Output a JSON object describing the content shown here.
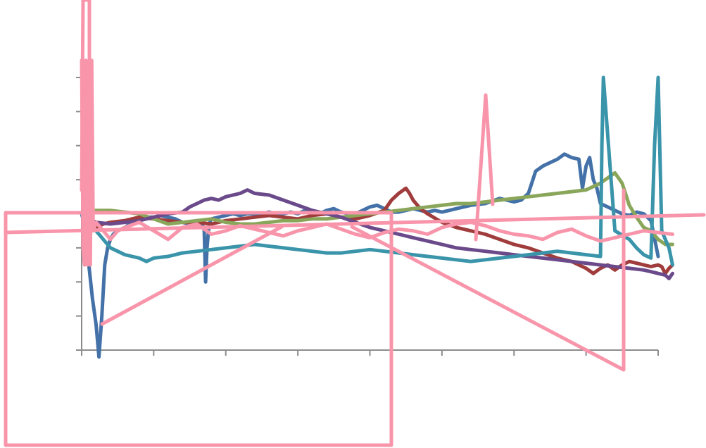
{
  "chart_data": {
    "type": "line",
    "title": "",
    "xlabel": "",
    "ylabel": "",
    "grid": false,
    "legend": "none",
    "x_ticks": 9,
    "y_ticks": 9,
    "xlim": [
      0,
      800
    ],
    "ylim": [
      -8,
      8
    ],
    "series": [
      {
        "color": "#4472a8",
        "x": [
          0,
          5,
          10,
          15,
          20,
          24,
          28,
          32,
          36,
          40,
          44,
          50,
          60,
          70,
          80,
          90,
          100,
          110,
          120,
          130,
          140,
          150,
          160,
          170,
          172,
          174,
          176,
          178,
          180,
          190,
          200,
          210,
          220,
          230,
          240,
          250,
          260,
          270,
          280,
          290,
          300,
          310,
          320,
          330,
          340,
          350,
          360,
          370,
          380,
          390,
          400,
          410,
          420,
          430,
          440,
          450,
          460,
          470,
          480,
          490,
          500,
          510,
          520,
          530,
          540,
          560,
          580,
          600,
          610,
          620,
          630,
          640,
          650,
          660,
          670,
          680,
          690,
          695,
          700,
          705,
          710,
          715,
          720,
          730,
          740,
          750,
          760,
          770,
          780,
          790,
          800
        ],
        "y": [
          0,
          -0.8,
          -3,
          -5,
          -6.5,
          -8.4,
          -6,
          -3,
          -2,
          -1.5,
          -1.2,
          -1,
          -0.8,
          -0.5,
          -0.3,
          -0.2,
          -0.2,
          -0.1,
          -0.2,
          -0.3,
          -0.5,
          -0.6,
          -0.4,
          -0.8,
          -4,
          -2,
          -1,
          -0.5,
          -0.3,
          -0.2,
          -0.1,
          0,
          -0.1,
          0,
          0,
          0,
          0.1,
          0,
          0,
          0.1,
          0,
          0.2,
          0.1,
          0,
          0.2,
          0.3,
          0.1,
          0,
          0,
          0.2,
          0.4,
          0.5,
          0.3,
          0.1,
          0.1,
          0.2,
          0.3,
          0.2,
          0.1,
          0.2,
          0.1,
          0.2,
          0.3,
          0.4,
          0.5,
          0.6,
          0.9,
          0.7,
          0.8,
          1.2,
          2.5,
          2.8,
          3.0,
          3.2,
          3.5,
          3.3,
          3.2,
          1.5,
          2.8,
          3.3,
          2.0,
          1.5,
          0.6,
          0.4,
          0.2,
          0,
          -0.1,
          0.1,
          0,
          -0.4,
          -2.5
        ]
      },
      {
        "color": "#a03c3c",
        "x": [
          0,
          10,
          20,
          30,
          40,
          60,
          80,
          100,
          120,
          140,
          160,
          180,
          200,
          220,
          240,
          260,
          280,
          300,
          320,
          340,
          360,
          380,
          400,
          420,
          430,
          440,
          450,
          455,
          460,
          470,
          480,
          500,
          520,
          540,
          560,
          580,
          600,
          620,
          640,
          660,
          680,
          700,
          710,
          720,
          730,
          740,
          750,
          760,
          770,
          780,
          790,
          800,
          805,
          810,
          815,
          820
        ],
        "y": [
          0,
          -0.5,
          -0.8,
          -0.6,
          -0.5,
          -0.4,
          -0.2,
          -0.3,
          -0.4,
          -0.5,
          -0.5,
          -0.6,
          -0.4,
          -0.3,
          -0.2,
          -0.1,
          -0.2,
          -0.3,
          -0.1,
          0,
          -0.2,
          -0.3,
          -0.1,
          0.2,
          0.8,
          1.2,
          1.5,
          1.2,
          0.8,
          0.3,
          0,
          -0.5,
          -0.8,
          -1.0,
          -1.2,
          -1.5,
          -1.8,
          -2.0,
          -2.3,
          -2.6,
          -2.8,
          -3.2,
          -3.5,
          -3.2,
          -3.0,
          -3.3,
          -3.0,
          -2.8,
          -2.9,
          -3.0,
          -3.1,
          -3.0,
          -3.1,
          -3.5,
          -3.2,
          -3.0
        ]
      },
      {
        "color": "#8aa65a",
        "x": [
          0,
          20,
          40,
          60,
          80,
          100,
          120,
          140,
          160,
          180,
          200,
          220,
          240,
          260,
          280,
          300,
          320,
          340,
          360,
          380,
          400,
          420,
          440,
          460,
          480,
          500,
          520,
          540,
          560,
          580,
          600,
          620,
          640,
          660,
          680,
          700,
          710,
          720,
          730,
          740,
          750,
          760,
          770,
          780,
          790,
          800,
          810,
          820
        ],
        "y": [
          0,
          0.2,
          0.2,
          0.1,
          0,
          -0.3,
          -0.6,
          -0.5,
          -0.4,
          -0.3,
          -0.5,
          -0.6,
          -0.6,
          -0.5,
          -0.4,
          -0.4,
          -0.3,
          -0.3,
          -0.2,
          -0.1,
          0,
          0.1,
          0.2,
          0.3,
          0.4,
          0.5,
          0.6,
          0.6,
          0.7,
          0.8,
          0.9,
          1.0,
          1.1,
          1.2,
          1.3,
          1.4,
          1.6,
          1.8,
          2.1,
          2.4,
          1.8,
          0.5,
          -0.2,
          -0.8,
          -1.0,
          -1.5,
          -1.8,
          -1.8
        ]
      },
      {
        "color": "#6a4a8a",
        "x": [
          0,
          10,
          20,
          40,
          60,
          80,
          100,
          120,
          140,
          150,
          160,
          170,
          180,
          190,
          200,
          220,
          230,
          240,
          260,
          280,
          300,
          320,
          340,
          360,
          380,
          400,
          420,
          440,
          460,
          480,
          500,
          520,
          540,
          560,
          580,
          600,
          620,
          640,
          660,
          680,
          700,
          720,
          740,
          760,
          780,
          790,
          800,
          810,
          815,
          820
        ],
        "y": [
          0,
          -0.3,
          -0.5,
          -0.6,
          -0.5,
          -0.4,
          -0.2,
          0,
          0.1,
          0.4,
          0.6,
          0.8,
          0.9,
          0.8,
          1.0,
          1.2,
          1.4,
          1.2,
          1.1,
          0.8,
          0.5,
          0.2,
          0,
          -0.2,
          -0.5,
          -0.8,
          -1.0,
          -1.2,
          -1.4,
          -1.6,
          -1.8,
          -2.0,
          -2.1,
          -2.2,
          -2.3,
          -2.4,
          -2.5,
          -2.6,
          -2.7,
          -2.8,
          -2.9,
          -3.0,
          -3.1,
          -3.2,
          -3.3,
          -3.4,
          -3.5,
          -3.6,
          -3.8,
          -3.5
        ]
      },
      {
        "color": "#3a94aa",
        "x": [
          0,
          10,
          20,
          30,
          40,
          50,
          60,
          70,
          80,
          90,
          100,
          120,
          140,
          160,
          180,
          200,
          220,
          240,
          260,
          280,
          300,
          320,
          340,
          360,
          380,
          400,
          420,
          440,
          460,
          480,
          500,
          520,
          540,
          560,
          580,
          600,
          620,
          640,
          660,
          680,
          700,
          720,
          722,
          724,
          740,
          760,
          770,
          780,
          790,
          795,
          800,
          805,
          810,
          815,
          820
        ],
        "y": [
          0,
          -0.5,
          -1.0,
          -1.5,
          -2.0,
          -2.2,
          -2.4,
          -2.5,
          -2.6,
          -2.8,
          -2.6,
          -2.5,
          -2.3,
          -2.2,
          -2.1,
          -2.0,
          -1.9,
          -1.8,
          -1.9,
          -2.0,
          -2.1,
          -2.2,
          -2.3,
          -2.3,
          -2.2,
          -2.1,
          -2.2,
          -2.3,
          -2.4,
          -2.5,
          -2.6,
          -2.7,
          -2.8,
          -2.7,
          -2.6,
          -2.5,
          -2.4,
          -2.3,
          -2.2,
          -2.3,
          -2.4,
          -2.5,
          4,
          8,
          -1.0,
          -1.5,
          -2.0,
          -2.4,
          -2.6,
          4,
          8,
          -1.0,
          -1.5,
          -2.0,
          -3.0
        ]
      },
      {
        "color": "#f895aa",
        "x": [
          0,
          2,
          4,
          6,
          8,
          10,
          12,
          14,
          16,
          20,
          30,
          40,
          50,
          60,
          80,
          100,
          120,
          140,
          160,
          180,
          200,
          220,
          240,
          260,
          280,
          300,
          320,
          340,
          360,
          380,
          400,
          420,
          440,
          460,
          480,
          500,
          520,
          540,
          560,
          580,
          600,
          620,
          640,
          660,
          680,
          700,
          720,
          740,
          760,
          780,
          800,
          820
        ],
        "y": [
          9,
          -2,
          -3,
          9,
          -3,
          -2,
          -3,
          9,
          -1,
          -0.5,
          -1,
          -1.5,
          -1,
          -0.8,
          -0.5,
          -1.0,
          -1.5,
          -0.8,
          -0.6,
          -1.2,
          -1.0,
          -0.7,
          -0.9,
          -1.1,
          -1.3,
          -1.0,
          -0.8,
          -0.6,
          -0.9,
          -1.2,
          -1.4,
          -1.1,
          -0.9,
          -1.0,
          -1.2,
          -0.8,
          -0.6,
          -0.5,
          -0.7,
          -1.0,
          -1.2,
          -1.3,
          -1.5,
          -1.1,
          -0.9,
          -1.3,
          -1.6,
          -1.4,
          -1.2,
          -1.0,
          -1.1,
          -1.2
        ]
      }
    ]
  }
}
